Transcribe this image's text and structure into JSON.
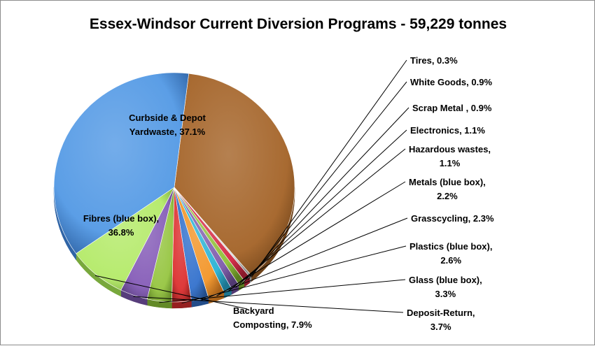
{
  "chart_data": {
    "type": "pie",
    "title": "Essex-Windsor Current Diversion Programs - 59,229 tonnes",
    "slices": [
      {
        "label": "Curbside & Depot Yardwaste",
        "value": 37.1,
        "label_lines": [
          "Curbside & Depot",
          "Yardwaste, 37.1%"
        ],
        "color": "#a86a31",
        "dark": "#6e4219"
      },
      {
        "label": "Tires",
        "value": 0.3,
        "label_lines": [
          "Tires, 0.3%"
        ],
        "color": "#d9d9d9",
        "dark": "#8a8a8a"
      },
      {
        "label": "White Goods",
        "value": 0.9,
        "label_lines": [
          "White Goods, 0.9%"
        ],
        "color": "#d6314b",
        "dark": "#8a1a2b"
      },
      {
        "label": "Scrap Metal",
        "value": 0.9,
        "label_lines": [
          "Scrap Metal , 0.9%"
        ],
        "color": "#94c23f",
        "dark": "#5a7d1f"
      },
      {
        "label": "Electronics",
        "value": 1.1,
        "label_lines": [
          "Electronics, 1.1%"
        ],
        "color": "#8462b0",
        "dark": "#513a72"
      },
      {
        "label": "Hazardous wastes",
        "value": 1.1,
        "label_lines": [
          "Hazardous wastes,",
          "1.1%"
        ],
        "color": "#33b6d6",
        "dark": "#1c7590"
      },
      {
        "label": "Metals (blue box)",
        "value": 2.2,
        "label_lines": [
          "Metals (blue box),",
          "2.2%"
        ],
        "color": "#f39a32",
        "dark": "#a9621a"
      },
      {
        "label": "Grasscycling",
        "value": 2.3,
        "label_lines": [
          "Grasscycling,  2.3%"
        ],
        "color": "#3d78cf",
        "dark": "#234d8a"
      },
      {
        "label": "Plastics (blue box)",
        "value": 2.6,
        "label_lines": [
          "Plastics (blue box),",
          "2.6%"
        ],
        "color": "#de3a3a",
        "dark": "#962020"
      },
      {
        "label": "Glass (blue box)",
        "value": 3.3,
        "label_lines": [
          "Glass (blue box),",
          "3.3%"
        ],
        "color": "#9bc84a",
        "dark": "#638a27"
      },
      {
        "label": "Deposit-Return",
        "value": 3.7,
        "label_lines": [
          "Deposit-Return,",
          "3.7%"
        ],
        "color": "#8b64bb",
        "dark": "#573d7b"
      },
      {
        "label": "Backyard Composting",
        "value": 7.9,
        "label_lines": [
          "Backyard",
          "Composting, 7.9%"
        ],
        "color": "#b7eb6f",
        "dark": "#78a83c"
      },
      {
        "label": "Fibres (blue box)",
        "value": 36.8,
        "label_lines": [
          "Fibres (blue box),",
          "36.8%"
        ],
        "color": "#5b9ee6",
        "dark": "#2f64a6"
      }
    ]
  }
}
